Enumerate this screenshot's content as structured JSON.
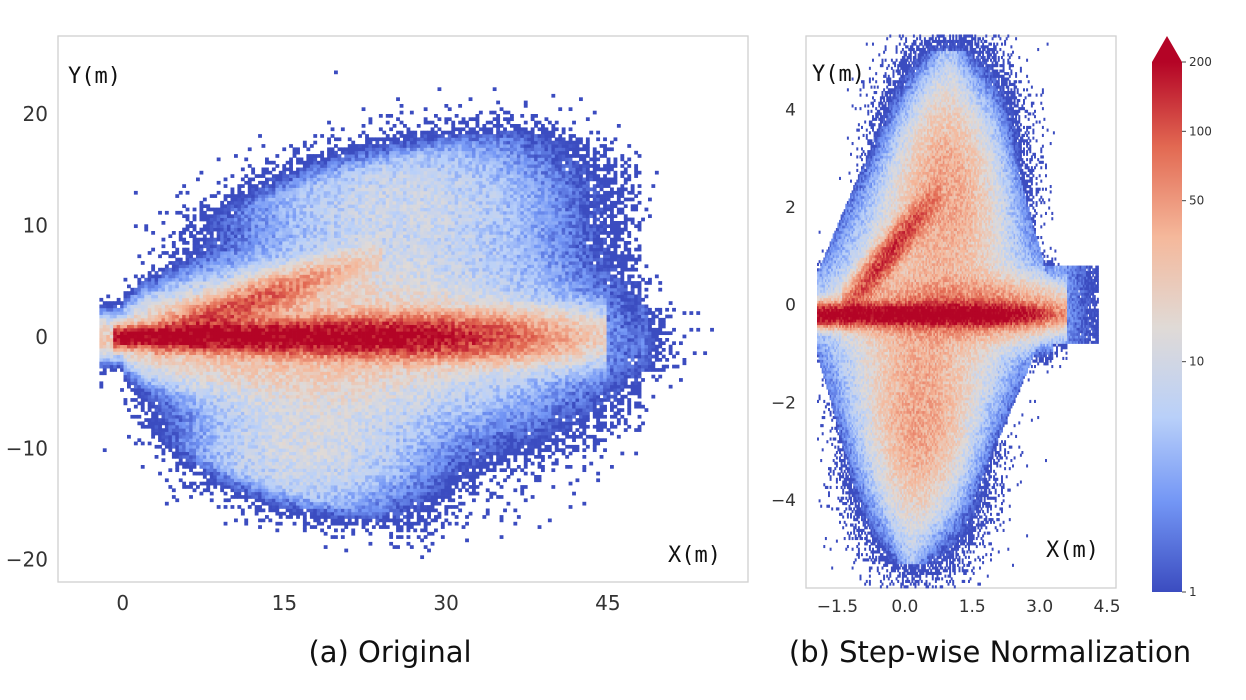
{
  "colors": {
    "scale": [
      "#3b4cc0",
      "#7396f5",
      "#b9d0f9",
      "#e0dad6",
      "#f5b89b",
      "#e26952",
      "#b40426"
    ],
    "frame": "#d0d0d0"
  },
  "colorbar": {
    "scale": "log",
    "ticks": [
      "200",
      "100",
      "50",
      "10",
      "1"
    ],
    "range": [
      1,
      200
    ],
    "extend": "max"
  },
  "chart_data": [
    {
      "type": "heatmap",
      "panel": "a",
      "caption": "(a) Original",
      "xlabel": "X(m)",
      "ylabel": "Y(m)",
      "xticks": [
        "0",
        "15",
        "30",
        "45"
      ],
      "yticks": [
        "20",
        "10",
        "0",
        "−10",
        "−20"
      ],
      "xlim": [
        -6,
        58
      ],
      "ylim": [
        -22,
        27
      ],
      "density_features": [
        {
          "name": "main streak",
          "x_range": [
            0,
            30
          ],
          "y": 0,
          "peak": 200
        },
        {
          "name": "upper branch",
          "x_range": [
            5,
            22
          ],
          "y_range": [
            0,
            8
          ],
          "peak": 120
        },
        {
          "name": "upper cloud",
          "x_center": 27,
          "y_center": 13,
          "peak": 10
        },
        {
          "name": "lower cloud",
          "x_center": 17,
          "y_center": -10,
          "peak": 12
        }
      ]
    },
    {
      "type": "heatmap",
      "panel": "b",
      "caption": "(b) Step-wise Normalization",
      "xlabel": "X(m)",
      "ylabel": "Y(m)",
      "xticks": [
        "−1.5",
        "0.0",
        "1.5",
        "3.0",
        "4.5"
      ],
      "yticks": [
        "4",
        "2",
        "0",
        "−2",
        "−4"
      ],
      "xlim": [
        -2.2,
        4.7
      ],
      "ylim": [
        -5.8,
        5.5
      ],
      "density_features": [
        {
          "name": "main streak",
          "x_range": [
            -1.5,
            3.5
          ],
          "y": -0.2,
          "peak": 200
        },
        {
          "name": "upper branch",
          "x_range": [
            -1.2,
            0.4
          ],
          "y_range": [
            0,
            1.5
          ],
          "peak": 150
        },
        {
          "name": "upper lobe",
          "x_center": 0.9,
          "y_center": 2.5,
          "peak": 30
        },
        {
          "name": "lower lobe",
          "x_center": 0.3,
          "y_center": -2.5,
          "peak": 30
        }
      ]
    }
  ]
}
